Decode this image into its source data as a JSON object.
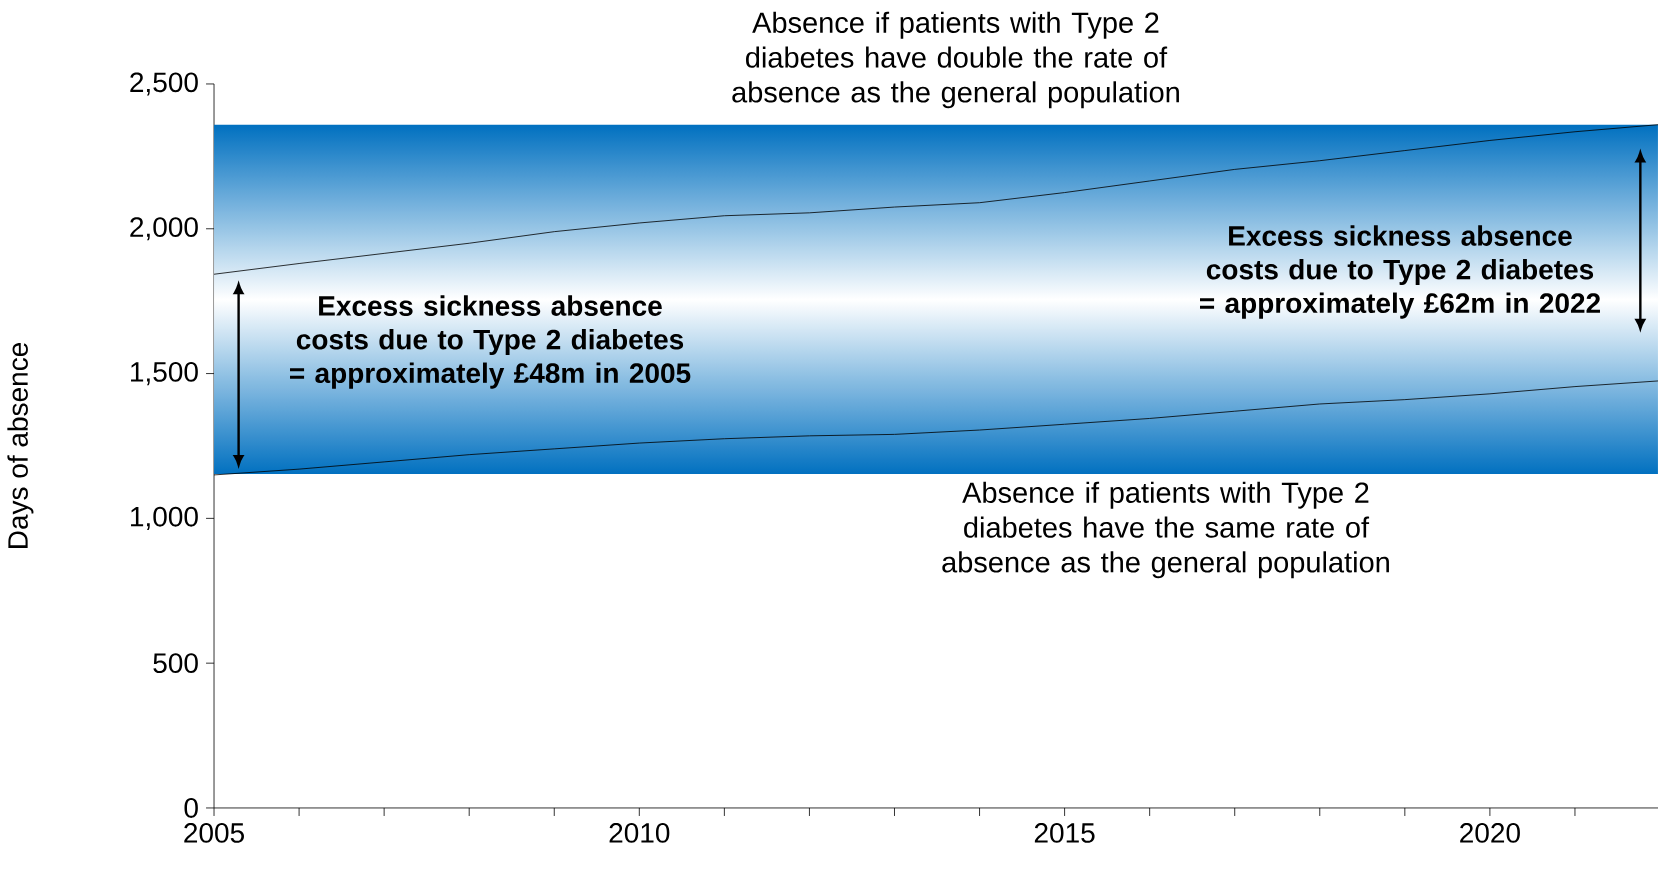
{
  "chart_data": {
    "type": "line",
    "ylabel": "Days of absence",
    "x": [
      2005,
      2006,
      2007,
      2008,
      2009,
      2010,
      2011,
      2012,
      2013,
      2014,
      2015,
      2016,
      2017,
      2018,
      2019,
      2020,
      2021,
      2022
    ],
    "series": [
      {
        "color": "#000000",
        "values": [
          1843,
          1880,
          1915,
          1950,
          1990,
          2020,
          2045,
          2055,
          2075,
          2090,
          2125,
          2165,
          2205,
          2235,
          2270,
          2305,
          2335,
          2360
        ]
      },
      {
        "color": "#000000",
        "values": [
          1150,
          1170,
          1195,
          1220,
          1240,
          1260,
          1275,
          1285,
          1290,
          1305,
          1325,
          1345,
          1370,
          1395,
          1410,
          1430,
          1455,
          1475
        ]
      }
    ],
    "xlim": [
      2005,
      2022
    ],
    "xticks": [
      2005,
      {
        "value": 2006,
        "label": null
      },
      {
        "value": 2007,
        "label": null
      },
      {
        "value": 2008,
        "label": null
      },
      {
        "value": 2009,
        "label": null
      },
      2010,
      {
        "value": 2011,
        "label": null
      },
      {
        "value": 2012,
        "label": null
      },
      {
        "value": 2013,
        "label": null
      },
      {
        "value": 2014,
        "label": null
      },
      2015,
      {
        "value": 2016,
        "label": null
      },
      {
        "value": 2017,
        "label": null
      },
      {
        "value": 2018,
        "label": null
      },
      {
        "value": 2019,
        "label": null
      },
      2020,
      {
        "value": 2021,
        "label": null
      },
      {
        "value": 2022,
        "label": null
      }
    ],
    "ylim": [
      0,
      2500
    ],
    "yticks": [
      0,
      500,
      {
        "value": 1000,
        "label": "1,000"
      },
      {
        "value": 1500,
        "label": "1,500"
      },
      {
        "value": 2000,
        "label": "2,000"
      },
      {
        "value": 2500,
        "label": "2,500"
      }
    ],
    "bands": [
      {
        "axis": "y",
        "from": 1150,
        "to": 2360,
        "color": "#0070c0"
      }
    ],
    "annotations": [
      "Absence if patients with Type 2 diabetes have double the rate of absence as the general population",
      "Absence if patients with Type 2 diabetes have the same rate of absence as the general population",
      "Excess sickness absence costs due to Type 2 diabetes = approximately £48m in 2005",
      "Excess sickness absence costs due to Type 2 diabetes = approximately £62m in 2022"
    ],
    "marker": "none",
    "line_style": "solid"
  }
}
